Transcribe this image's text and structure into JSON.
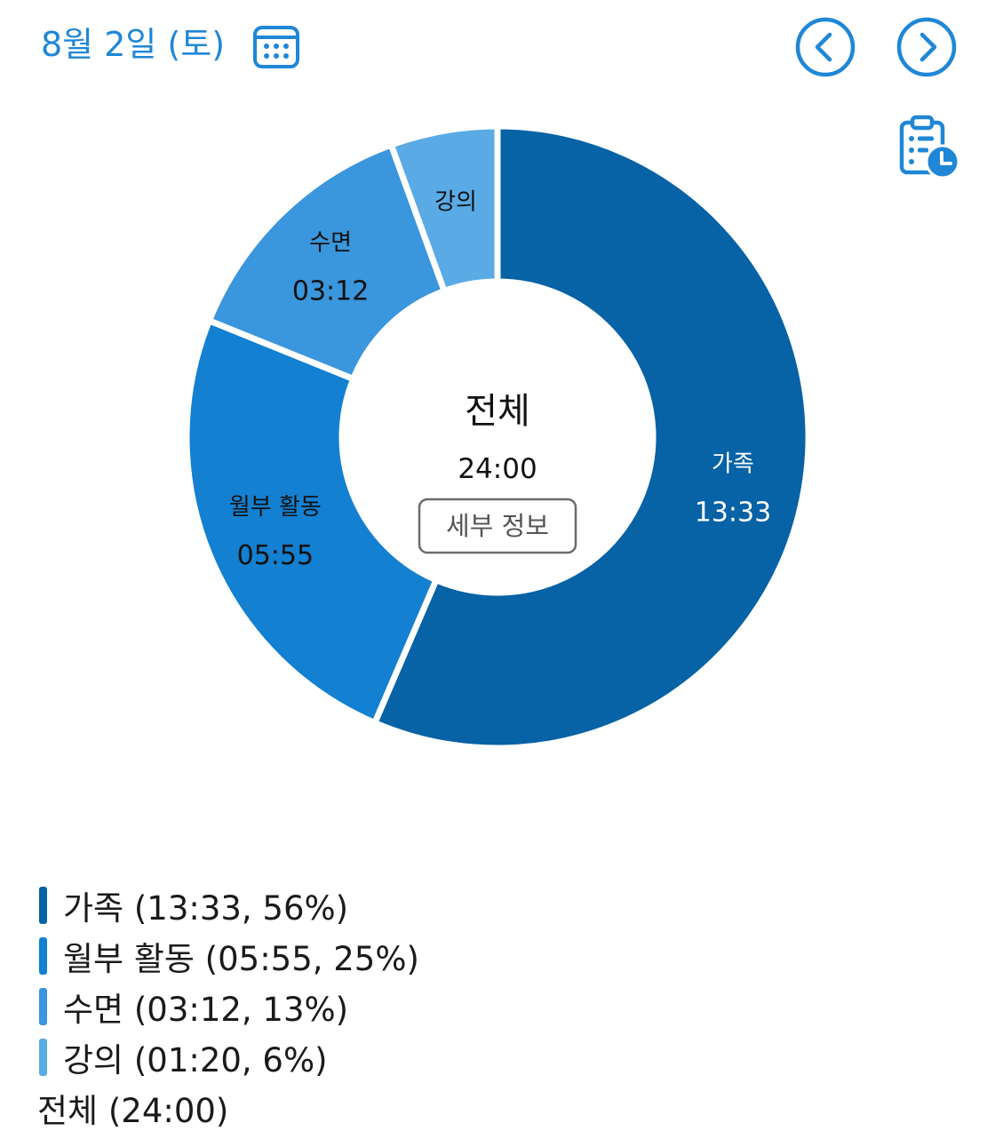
{
  "header": {
    "date_label": "8월 2일 (토)",
    "icons": {
      "calendar": "calendar-icon",
      "prev": "chevron-left-circle-icon",
      "next": "chevron-right-circle-icon",
      "history": "clipboard-clock-icon"
    },
    "accent_color": "#1f87d6"
  },
  "chart_data": {
    "type": "pie",
    "donut": true,
    "total_minutes": 1440,
    "center": {
      "title": "전체",
      "value": "24:00",
      "details_button": "세부 정보"
    },
    "slices": [
      {
        "label": "가족",
        "time": "13:33",
        "minutes": 813,
        "percent": "56%",
        "color": "#0762a6",
        "label_color": "#ffffff"
      },
      {
        "label": "월부 활동",
        "time": "05:55",
        "minutes": 355,
        "percent": "25%",
        "color": "#1380d1",
        "label_color": "#111111"
      },
      {
        "label": "수면",
        "time": "03:12",
        "minutes": 192,
        "percent": "13%",
        "color": "#3a96dd",
        "label_color": "#111111"
      },
      {
        "label": "강의",
        "time": "01:20",
        "minutes": 80,
        "percent": "6%",
        "color": "#5aaae6",
        "label_color": "#111111"
      }
    ],
    "legend": [
      "가족 (13:33, 56%)",
      "월부 활동 (05:55, 25%)",
      "수면 (03:12, 13%)",
      "강의 (01:20, 6%)"
    ],
    "legend_total": "전체 (24:00)"
  }
}
